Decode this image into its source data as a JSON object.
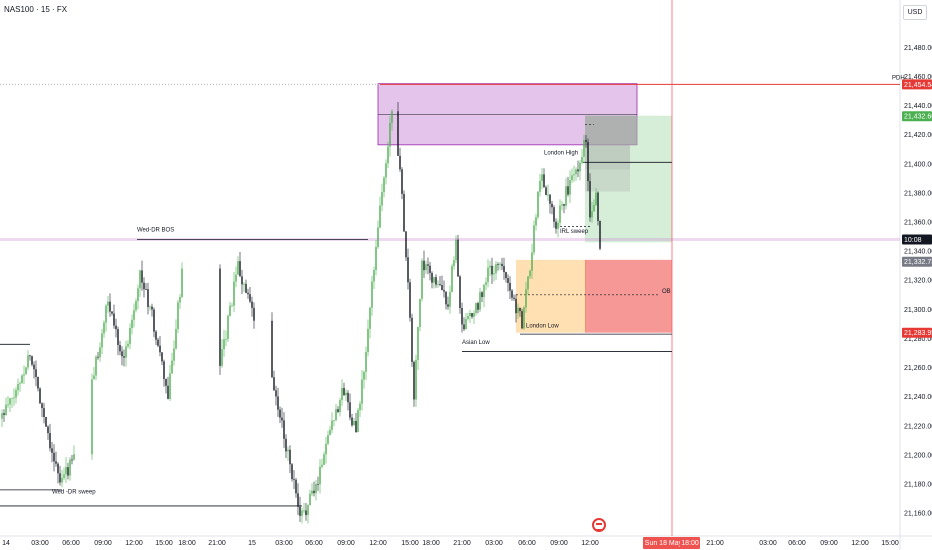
{
  "header": {
    "symbol": "NAS100 · 15 · FX",
    "currency": "USD"
  },
  "chart_data": {
    "type": "candlestick",
    "y_ticks": [
      21160,
      21180,
      21200,
      21220,
      21240,
      21260,
      21280,
      21300,
      21320,
      21340,
      21360,
      21380,
      21400,
      21420,
      21440,
      21460,
      21480
    ],
    "y_tick_labels": [
      "21,160.00",
      "21,180.00",
      "21,200.00",
      "21,220.00",
      "21,240.00",
      "21,260.00",
      "21,280.00",
      "21,300.00",
      "21,320.00",
      "21,340.00",
      "21,360.00",
      "21,380.00",
      "21,400.00",
      "21,420.00",
      "21,440.00",
      "21,460.00",
      "21,480.00"
    ],
    "x_ticks": [
      "14",
      "03:00",
      "06:00",
      "09:00",
      "12:00",
      "15:00",
      "18:00",
      "21:00",
      "15",
      "03:00",
      "06:00",
      "09:00",
      "12:00",
      "15:00",
      "18:00",
      "21:00",
      "03:00",
      "06:00",
      "09:00",
      "12:00",
      "",
      "",
      "18:00",
      "21:00",
      "",
      "03:00",
      "06:00",
      "09:00",
      "12:00",
      "15:00"
    ],
    "x_tick_positions": [
      6,
      40,
      71,
      103,
      134,
      164,
      187,
      217,
      252,
      284,
      314,
      346,
      378,
      410,
      431,
      462,
      494,
      527,
      559,
      590,
      622,
      654,
      688,
      715,
      749,
      768,
      797,
      829,
      860,
      890
    ],
    "price_labels": [
      {
        "text": "21,454.54",
        "value": 21454.54,
        "color": "#e53935"
      },
      {
        "text": "21,432.66",
        "value": 21432.66,
        "color": "#4caf50"
      },
      {
        "text": "10:08",
        "value": 21348,
        "color": "#131722"
      },
      {
        "text": "21,332.73",
        "value": 21332.73,
        "color": "#787b86"
      },
      {
        "text": "21,283.95",
        "value": 21283.95,
        "color": "#e53935"
      }
    ],
    "pdh_label": "PDH",
    "annotations": [
      {
        "text": "Wed-DR BOS",
        "x": 137,
        "value": 21352
      },
      {
        "text": "Wed -DR sweep",
        "x": 52,
        "value": 21172
      },
      {
        "text": "London High",
        "x": 544,
        "value": 21405
      },
      {
        "text": "IRL sweep",
        "x": 560,
        "value": 21351
      },
      {
        "text": "London Low",
        "x": 526,
        "value": 21286
      },
      {
        "text": "Asian Low",
        "x": 462,
        "value": 21275
      },
      {
        "text": "OB",
        "x": 662,
        "value": 21310
      }
    ],
    "date_label": "Sun 18 May '25",
    "date_time": "18:00",
    "vline_x": 672,
    "colors": {
      "up": "#4caf50",
      "down": "#131722",
      "accent_red": "#e53935"
    }
  }
}
